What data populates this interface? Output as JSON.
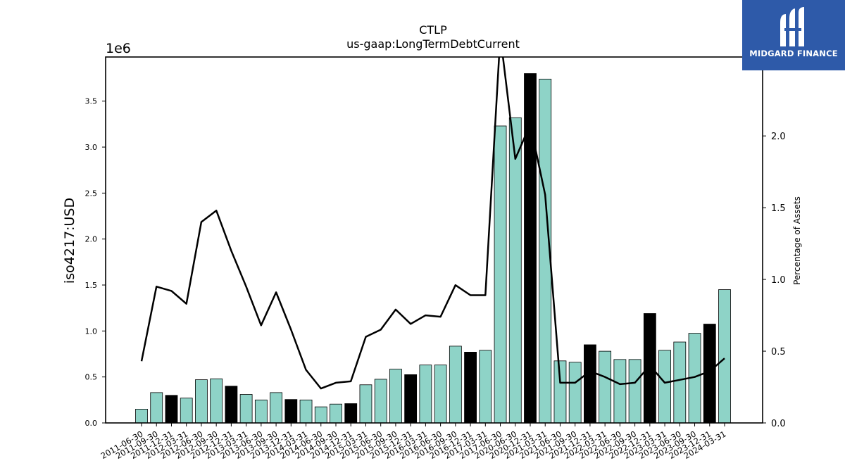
{
  "chart_data": {
    "type": "bar",
    "title": "CTLP",
    "subtitle": "us-gaap:LongTermDebtCurrent",
    "ylabel": "iso4217:USD",
    "y_offset_label": "1e6",
    "y2label": "Percentage of Assets",
    "ylim": [
      0,
      3980000
    ],
    "y2lim": [
      0,
      2.55
    ],
    "yticks": [
      "0.0",
      "0.5",
      "1.0",
      "1.5",
      "2.0",
      "2.5",
      "3.0",
      "3.5"
    ],
    "ytick_values": [
      0,
      500000,
      1000000,
      1500000,
      2000000,
      2500000,
      3000000,
      3500000
    ],
    "y2ticks": [
      "0.0",
      "0.5",
      "1.0",
      "1.5",
      "2.0"
    ],
    "y2tick_values": [
      0,
      0.5,
      1.0,
      1.5,
      2.0
    ],
    "grid": false,
    "categories": [
      "2011-06-30",
      "2011-09-30",
      "2011-12-31",
      "2012-03-31",
      "2012-06-30",
      "2012-09-30",
      "2012-12-31",
      "2013-03-31",
      "2013-06-30",
      "2013-09-30",
      "2013-12-31",
      "2014-03-31",
      "2014-06-30",
      "2014-09-30",
      "2014-12-31",
      "2015-03-31",
      "2015-06-30",
      "2015-09-30",
      "2015-12-31",
      "2016-03-31",
      "2016-06-30",
      "2016-09-30",
      "2016-12-31",
      "2017-03-31",
      "2017-06-30",
      "2020-06-30",
      "2020-12-31",
      "2021-03-31",
      "2021-06-30",
      "2021-09-30",
      "2021-12-31",
      "2022-03-31",
      "2022-06-30",
      "2022-09-30",
      "2022-12-31",
      "2023-03-31",
      "2023-06-30",
      "2023-09-30",
      "2023-12-31",
      "2024-03-31"
    ],
    "values": [
      150000,
      330000,
      300000,
      270000,
      470000,
      480000,
      400000,
      310000,
      250000,
      330000,
      255000,
      250000,
      175000,
      205000,
      210000,
      415000,
      475000,
      585000,
      525000,
      630000,
      630000,
      835000,
      770000,
      790000,
      3230000,
      3320000,
      3800000,
      3740000,
      675000,
      660000,
      850000,
      780000,
      690000,
      690000,
      1190000,
      790000,
      880000,
      975000,
      1075000,
      1450000
    ],
    "highlight": [
      false,
      false,
      true,
      false,
      false,
      false,
      true,
      false,
      false,
      false,
      true,
      false,
      false,
      false,
      true,
      false,
      false,
      false,
      true,
      false,
      false,
      false,
      true,
      false,
      false,
      false,
      true,
      false,
      false,
      false,
      true,
      false,
      false,
      false,
      true,
      false,
      false,
      false,
      true,
      false
    ],
    "line_series": {
      "name": "Percentage of Assets",
      "values": [
        0.43,
        0.95,
        0.92,
        0.83,
        1.4,
        1.48,
        1.2,
        0.95,
        0.68,
        0.91,
        0.65,
        0.37,
        0.24,
        0.28,
        0.29,
        0.6,
        0.65,
        0.79,
        0.69,
        0.75,
        0.74,
        0.96,
        0.89,
        0.89,
        2.7,
        1.84,
        2.08,
        1.59,
        0.28,
        0.28,
        0.36,
        0.32,
        0.27,
        0.28,
        0.4,
        0.28,
        0.3,
        0.32,
        0.36,
        0.45
      ]
    },
    "colors": {
      "bar": "#8ed3c7",
      "bar_highlight": "#000000",
      "line": "#000000"
    }
  },
  "logo": {
    "text": "MIDGARD FINANCE",
    "background": "#2e5aa9"
  }
}
